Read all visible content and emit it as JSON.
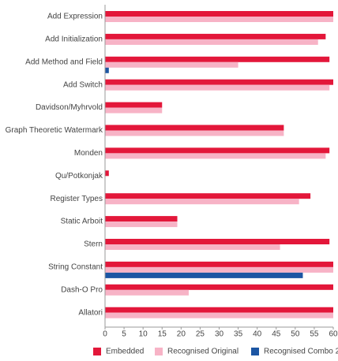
{
  "chart_data": {
    "type": "hbar",
    "categories": [
      "Add Expression",
      "Add Initialization",
      "Add Method and Field",
      "Add Switch",
      "Davidson/Myhrvold",
      "Graph Theoretic Watermark",
      "Monden",
      "Qu/Potkonjak",
      "Register Types",
      "Static Arboit",
      "Stern",
      "String Constant",
      "Dash-O Pro",
      "Allatori"
    ],
    "series": [
      {
        "name": "Embedded",
        "color": "#e3173a",
        "values": [
          60,
          58,
          59,
          60,
          15,
          47,
          59,
          1,
          54,
          19,
          59,
          60,
          60,
          60
        ]
      },
      {
        "name": "Recognised Original",
        "color": "#f7b3c6",
        "values": [
          60,
          56,
          35,
          59,
          15,
          47,
          58,
          0,
          51,
          19,
          46,
          60,
          22,
          60
        ]
      },
      {
        "name": "Recognised Combo 2",
        "color": "#1c56a3",
        "values": [
          0,
          0,
          1,
          0,
          0,
          0,
          0,
          0,
          0,
          0,
          0,
          52,
          0,
          0
        ]
      }
    ],
    "xlim": [
      0,
      60
    ],
    "xticks": [
      0,
      5,
      10,
      15,
      20,
      25,
      30,
      35,
      40,
      45,
      50,
      55,
      60
    ],
    "grid": false
  }
}
